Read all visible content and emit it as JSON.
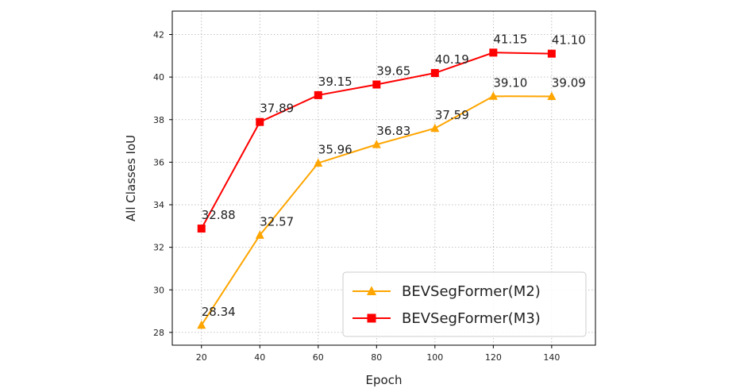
{
  "chart_data": {
    "type": "line",
    "title": "",
    "xlabel": "Epoch",
    "ylabel": "All Classes IoU",
    "x": [
      20,
      40,
      60,
      80,
      100,
      120,
      140
    ],
    "xticks": [
      20,
      40,
      60,
      80,
      100,
      120,
      140
    ],
    "xtick_labels": [
      "20",
      "40",
      "60",
      "80",
      "100",
      "120",
      "140"
    ],
    "yticks": [
      28,
      30,
      32,
      34,
      36,
      38,
      40,
      42
    ],
    "ytick_labels": [
      "28",
      "30",
      "32",
      "34",
      "36",
      "38",
      "40",
      "42"
    ],
    "xlim": [
      10,
      155
    ],
    "ylim": [
      27.4,
      43.1
    ],
    "grid": true,
    "legend_position": "lower-right",
    "series": [
      {
        "name": "BEVSegFormer(M2)",
        "color": "#ffa500",
        "marker": "triangle",
        "values": [
          28.34,
          32.57,
          35.96,
          36.83,
          37.59,
          39.1,
          39.09
        ],
        "labels": [
          "28.34",
          "32.57",
          "35.96",
          "36.83",
          "37.59",
          "39.10",
          "39.09"
        ]
      },
      {
        "name": "BEVSegFormer(M3)",
        "color": "#ff0000",
        "marker": "square",
        "values": [
          32.88,
          37.89,
          39.15,
          39.65,
          40.19,
          41.15,
          41.1
        ],
        "labels": [
          "32.88",
          "37.89",
          "39.15",
          "39.65",
          "40.19",
          "41.15",
          "41.10"
        ]
      }
    ]
  }
}
